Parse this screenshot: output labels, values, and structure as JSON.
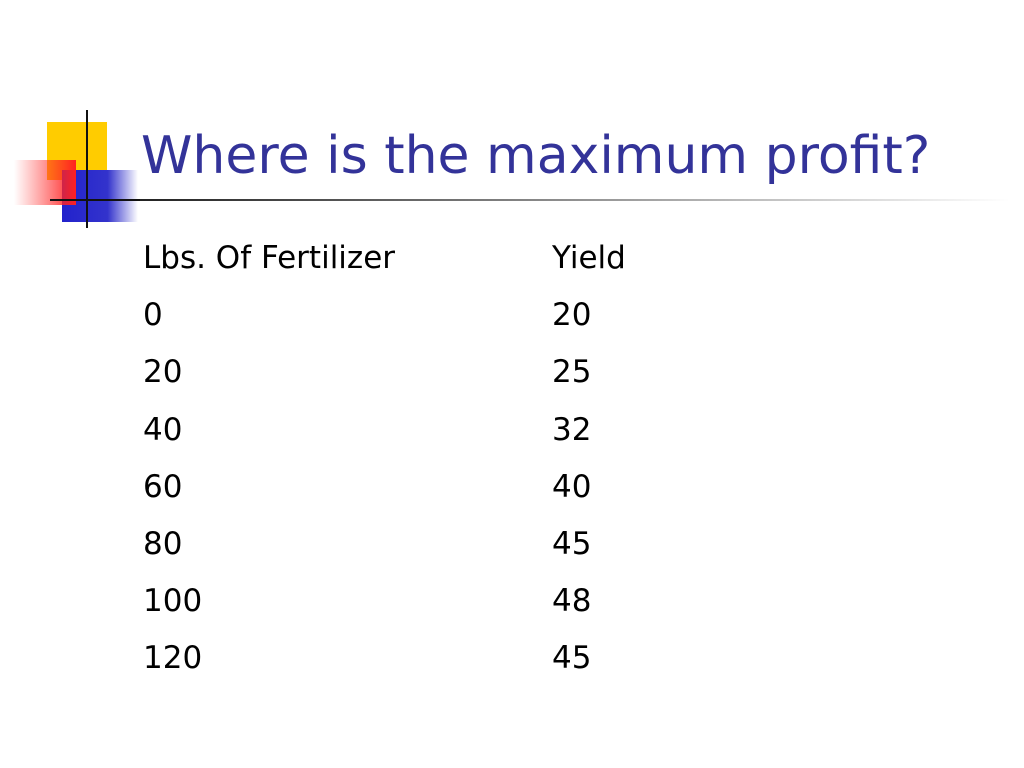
{
  "header": {
    "title": "Where is the maximum profit?"
  },
  "table": {
    "columns": [
      "Lbs. Of Fertilizer",
      "Yield"
    ],
    "rows": [
      [
        0,
        20
      ],
      [
        20,
        25
      ],
      [
        40,
        32
      ],
      [
        60,
        40
      ],
      [
        80,
        45
      ],
      [
        100,
        48
      ],
      [
        120,
        45
      ]
    ]
  }
}
